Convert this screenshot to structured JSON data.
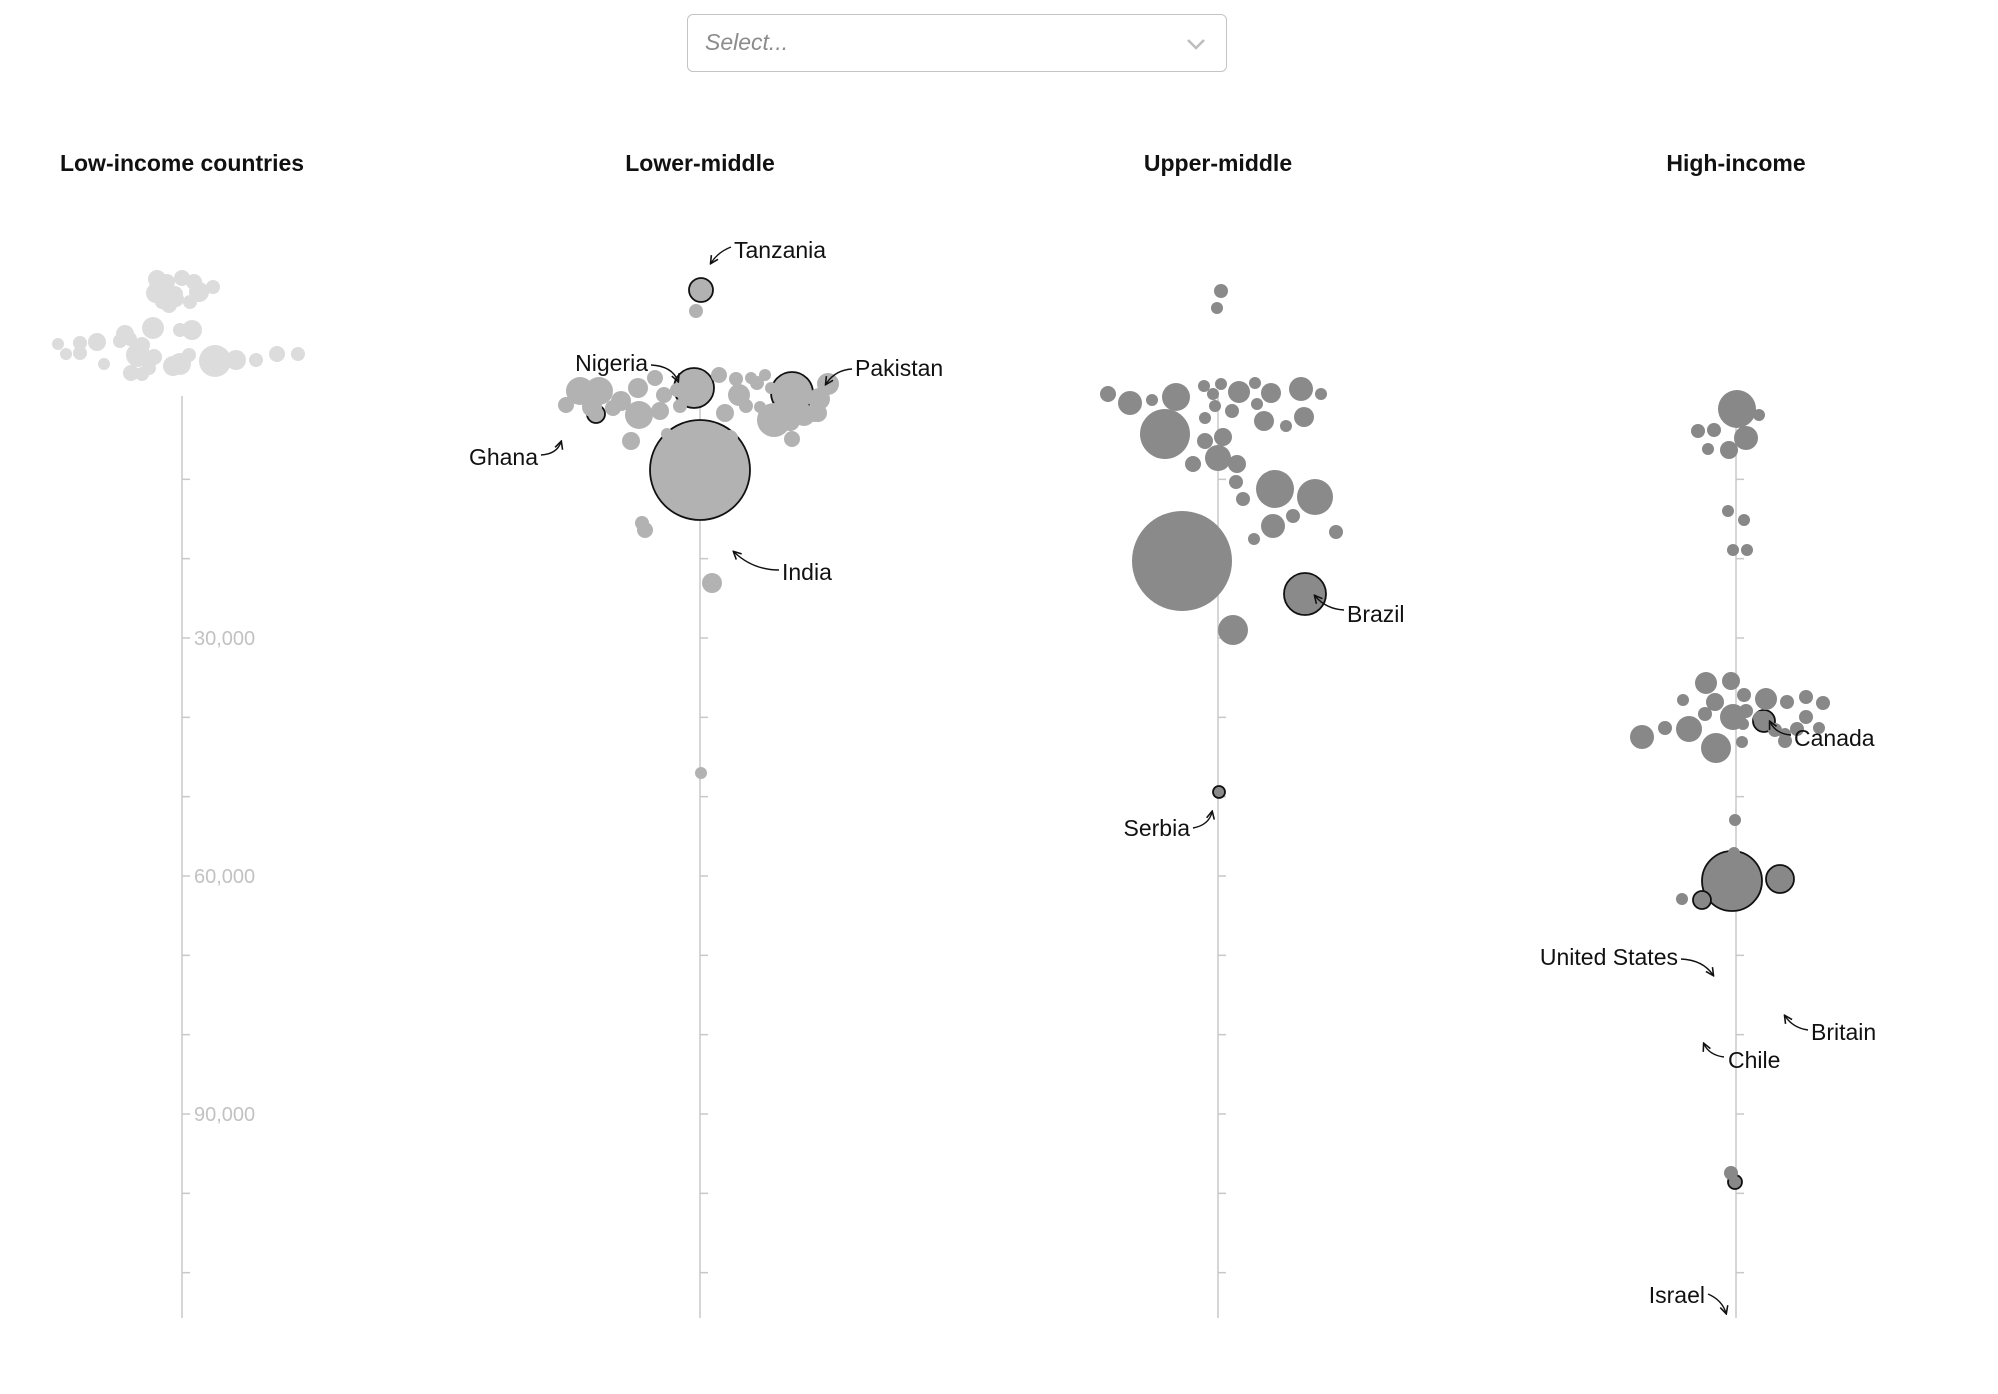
{
  "select": {
    "placeholder": "Select..."
  },
  "colors": {
    "low": "#dcdcdc",
    "lower_middle": "#b2b2b2",
    "upper_middle": "#8a8a8a",
    "high": "#888888",
    "axis": "#c8c8c8",
    "highlight_stroke": "#111111"
  },
  "chart_data": {
    "type": "scatter",
    "encoding": "beeswarm; bubble area proportional to population",
    "y_axis": {
      "range": [
        0,
        115000
      ],
      "ticks": [
        30000,
        60000,
        90000
      ],
      "tick_labels": [
        "30,000",
        "60,000",
        "90,000"
      ],
      "minor_step": 10000
    },
    "groups": [
      {
        "key": "low",
        "title": "Low-income countries",
        "shows_tick_labels": true,
        "highlighted": [],
        "bubbles": [
          [
            0,
            0,
            8
          ],
          [
            -25,
            1,
            9
          ],
          [
            -15,
            4,
            8
          ],
          [
            12,
            4,
            8
          ],
          [
            -27,
            9,
            6
          ],
          [
            31,
            9,
            7
          ],
          [
            -26,
            15,
            10
          ],
          [
            17,
            14,
            10
          ],
          [
            -11,
            19,
            10
          ],
          [
            -7,
            16,
            8
          ],
          [
            -6,
            21,
            8
          ],
          [
            -20,
            24,
            7
          ],
          [
            8,
            24,
            7
          ],
          [
            -13,
            27,
            8
          ],
          [
            -29,
            50,
            11
          ],
          [
            -2,
            52,
            7
          ],
          [
            10,
            52,
            10
          ],
          [
            -57,
            56,
            9
          ],
          [
            -52,
            61,
            7
          ],
          [
            -40,
            67,
            8
          ],
          [
            -62,
            63,
            7
          ],
          [
            -85,
            64,
            9
          ],
          [
            -102,
            65,
            7
          ],
          [
            -124,
            66,
            6
          ],
          [
            -102,
            75,
            7
          ],
          [
            -116,
            76,
            6
          ],
          [
            -78,
            86,
            6
          ],
          [
            -44,
            77,
            12
          ],
          [
            -28,
            79,
            8
          ],
          [
            -33,
            90,
            7
          ],
          [
            -9,
            88,
            10
          ],
          [
            -2,
            86,
            11
          ],
          [
            7,
            77,
            7
          ],
          [
            33,
            83,
            16
          ],
          [
            54,
            82,
            10
          ],
          [
            74,
            82,
            7
          ],
          [
            95,
            76,
            8
          ],
          [
            116,
            76,
            7
          ],
          [
            -51,
            95,
            8
          ],
          [
            -40,
            96,
            7
          ]
        ]
      },
      {
        "key": "lower_middle",
        "title": "Lower-middle",
        "shows_tick_labels": false,
        "highlighted": [
          {
            "name": "Tanzania",
            "i": 0
          },
          {
            "name": "Nigeria",
            "i": 2
          },
          {
            "name": "Pakistan",
            "i": 3
          },
          {
            "name": "Ghana",
            "i": 4
          },
          {
            "name": "India",
            "i": 5
          }
        ],
        "bubbles": [
          [
            1,
            12,
            12
          ],
          [
            -4,
            33,
            7
          ],
          [
            -6,
            110,
            20
          ],
          [
            92,
            115,
            21
          ],
          [
            -104,
            136,
            9
          ],
          [
            0,
            192,
            50
          ],
          [
            -120,
            113,
            14
          ],
          [
            -101,
            113,
            14
          ],
          [
            -79,
            123,
            10
          ],
          [
            -62,
            110,
            10
          ],
          [
            -36,
            117,
            8
          ],
          [
            -45,
            100,
            8
          ],
          [
            -23,
            112,
            7
          ],
          [
            -134,
            127,
            8
          ],
          [
            -108,
            129,
            10
          ],
          [
            -87,
            130,
            8
          ],
          [
            -61,
            137,
            14
          ],
          [
            -40,
            133,
            9
          ],
          [
            -20,
            128,
            7
          ],
          [
            19,
            97,
            8
          ],
          [
            36,
            101,
            7
          ],
          [
            25,
            135,
            9
          ],
          [
            57,
            105,
            7
          ],
          [
            51,
            100,
            6
          ],
          [
            39,
            117,
            11
          ],
          [
            65,
            97,
            6
          ],
          [
            46,
            128,
            7
          ],
          [
            60,
            129,
            6
          ],
          [
            71,
            110,
            6
          ],
          [
            119,
            121,
            11
          ],
          [
            128,
            106,
            11
          ],
          [
            104,
            137,
            11
          ],
          [
            74,
            142,
            17
          ],
          [
            118,
            135,
            9
          ],
          [
            114,
            138,
            6
          ],
          [
            90,
            143,
            10
          ],
          [
            92,
            161,
            8
          ],
          [
            -69,
            163,
            9
          ],
          [
            -33,
            156,
            6
          ],
          [
            30,
            160,
            8
          ],
          [
            -58,
            245,
            7
          ],
          [
            -55,
            252,
            8
          ],
          [
            12,
            305,
            10
          ],
          [
            1,
            495,
            6
          ]
        ]
      },
      {
        "key": "upper_middle",
        "title": "Upper-middle",
        "shows_tick_labels": false,
        "highlighted": [
          {
            "name": "Brazil",
            "i": 0
          },
          {
            "name": "Serbia",
            "i": 1
          }
        ],
        "bubbles": [
          [
            87,
            316,
            21
          ],
          [
            1,
            514,
            6
          ],
          [
            -36,
            283,
            50
          ],
          [
            3,
            13,
            7
          ],
          [
            -1,
            30,
            6
          ],
          [
            -110,
            116,
            8
          ],
          [
            -88,
            125,
            12
          ],
          [
            -66,
            122,
            6
          ],
          [
            -42,
            119,
            14
          ],
          [
            -14,
            108,
            6
          ],
          [
            3,
            106,
            6
          ],
          [
            -5,
            116,
            6
          ],
          [
            21,
            114,
            11
          ],
          [
            37,
            105,
            6
          ],
          [
            53,
            115,
            10
          ],
          [
            83,
            111,
            12
          ],
          [
            103,
            116,
            6
          ],
          [
            -13,
            140,
            6
          ],
          [
            -3,
            128,
            6
          ],
          [
            14,
            133,
            7
          ],
          [
            39,
            126,
            6
          ],
          [
            46,
            143,
            10
          ],
          [
            68,
            148,
            6
          ],
          [
            86,
            139,
            10
          ],
          [
            -53,
            156,
            25
          ],
          [
            -13,
            163,
            8
          ],
          [
            5,
            159,
            9
          ],
          [
            -25,
            186,
            8
          ],
          [
            0,
            180,
            13
          ],
          [
            19,
            186,
            9
          ],
          [
            18,
            204,
            7
          ],
          [
            25,
            221,
            7
          ],
          [
            57,
            211,
            19
          ],
          [
            97,
            219,
            18
          ],
          [
            55,
            248,
            12
          ],
          [
            75,
            238,
            7
          ],
          [
            36,
            261,
            6
          ],
          [
            118,
            254,
            7
          ],
          [
            15,
            352,
            15
          ]
        ]
      },
      {
        "key": "high",
        "title": "High-income",
        "shows_tick_labels": false,
        "highlighted": [
          {
            "name": "Canada",
            "i": 0
          },
          {
            "name": "United States",
            "i": 1
          },
          {
            "name": "Britain",
            "i": 2
          },
          {
            "name": "Chile",
            "i": 3
          },
          {
            "name": "Israel",
            "i": 4
          }
        ],
        "bubbles": [
          [
            28,
            443,
            11
          ],
          [
            -4,
            603,
            30
          ],
          [
            44,
            601,
            14
          ],
          [
            -34,
            622,
            9
          ],
          [
            -1,
            904,
            7
          ],
          [
            1,
            131,
            19
          ],
          [
            23,
            137,
            6
          ],
          [
            -38,
            153,
            7
          ],
          [
            -22,
            152,
            7
          ],
          [
            10,
            160,
            12
          ],
          [
            -7,
            172,
            9
          ],
          [
            -28,
            171,
            6
          ],
          [
            -8,
            233,
            6
          ],
          [
            8,
            242,
            6
          ],
          [
            -3,
            272,
            6
          ],
          [
            11,
            272,
            6
          ],
          [
            -30,
            405,
            11
          ],
          [
            -5,
            403,
            9
          ],
          [
            8,
            417,
            7
          ],
          [
            -21,
            424,
            9
          ],
          [
            -53,
            422,
            6
          ],
          [
            30,
            421,
            11
          ],
          [
            51,
            424,
            7
          ],
          [
            70,
            419,
            7
          ],
          [
            87,
            425,
            7
          ],
          [
            -3,
            439,
            13
          ],
          [
            -31,
            436,
            7
          ],
          [
            10,
            433,
            7
          ],
          [
            24,
            440,
            7
          ],
          [
            70,
            439,
            7
          ],
          [
            -47,
            451,
            13
          ],
          [
            -71,
            450,
            7
          ],
          [
            -94,
            459,
            12
          ],
          [
            39,
            452,
            7
          ],
          [
            61,
            451,
            7
          ],
          [
            83,
            450,
            6
          ],
          [
            49,
            456,
            6
          ],
          [
            -20,
            470,
            15
          ],
          [
            7,
            446,
            6
          ],
          [
            6,
            464,
            6
          ],
          [
            49,
            463,
            7
          ],
          [
            -54,
            621,
            6
          ],
          [
            -1,
            542,
            6
          ],
          [
            -2,
            575,
            6
          ],
          [
            8,
            621,
            7
          ],
          [
            -5,
            895,
            7
          ]
        ]
      }
    ]
  }
}
